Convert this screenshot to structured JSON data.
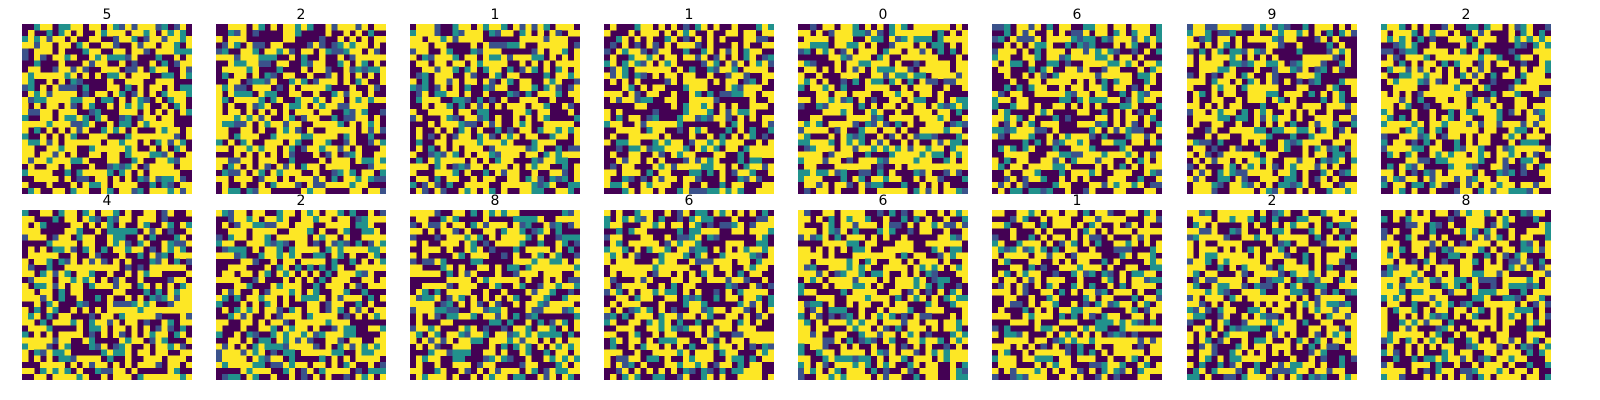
{
  "figure": {
    "grid": "2x8",
    "titles": [
      "5",
      "2",
      "1",
      "1",
      "0",
      "6",
      "9",
      "2",
      "4",
      "2",
      "8",
      "6",
      "6",
      "1",
      "2",
      "8"
    ]
  },
  "chart_data": {
    "type": "heatmap",
    "colormap": "viridis",
    "image_size": [
      28,
      28
    ],
    "value_levels": [
      0,
      1,
      2,
      3
    ],
    "level_colors": [
      "#440154",
      "#3b528b",
      "#21918c",
      "#fde725"
    ],
    "axes_visible": false,
    "panels": [
      {
        "title": "5"
      },
      {
        "title": "2"
      },
      {
        "title": "1"
      },
      {
        "title": "1"
      },
      {
        "title": "0"
      },
      {
        "title": "6"
      },
      {
        "title": "9"
      },
      {
        "title": "2"
      },
      {
        "title": "4"
      },
      {
        "title": "2"
      },
      {
        "title": "8"
      },
      {
        "title": "6"
      },
      {
        "title": "6"
      },
      {
        "title": "1"
      },
      {
        "title": "2"
      },
      {
        "title": "8"
      }
    ]
  }
}
